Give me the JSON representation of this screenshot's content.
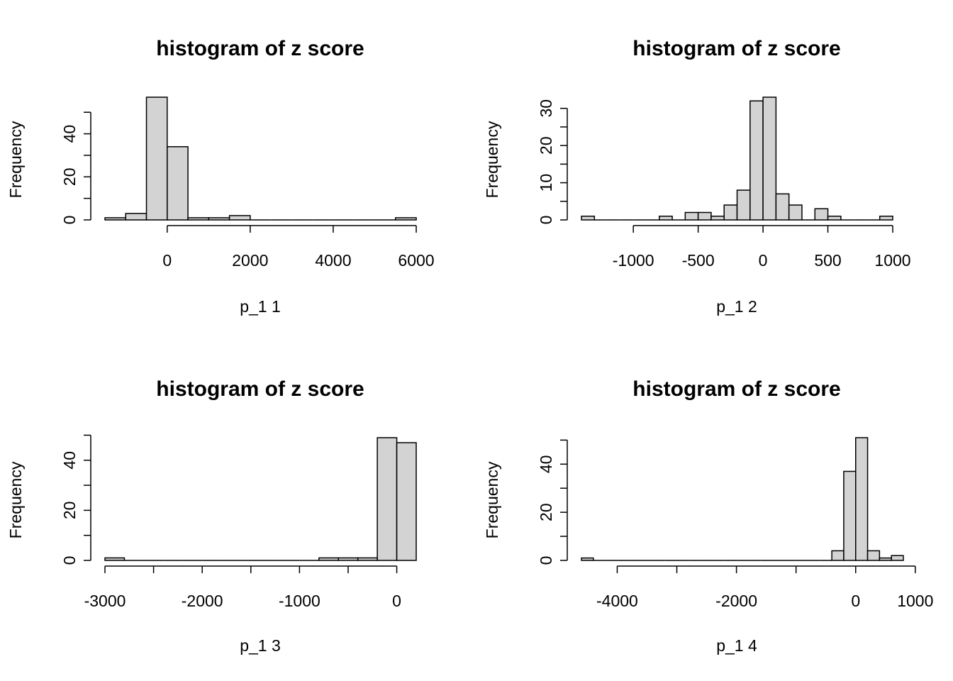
{
  "chart_data": [
    {
      "type": "bar",
      "title": "histogram of z score",
      "xlabel": "p_1 1",
      "ylabel": "Frequency",
      "bins": [
        -1500,
        -1000,
        -500,
        0,
        500,
        1000,
        1500,
        2000,
        2500,
        3000,
        3500,
        4000,
        4500,
        5000,
        5500,
        6000
      ],
      "counts": [
        1,
        3,
        57,
        34,
        1,
        1,
        2,
        0,
        0,
        0,
        0,
        0,
        0,
        0,
        1
      ],
      "xticks": [
        0,
        2000,
        4000,
        6000
      ],
      "xtick_labels": [
        "0",
        "2000",
        "4000",
        "6000"
      ],
      "yticks": [
        0,
        10,
        20,
        30,
        40,
        50
      ],
      "ytick_labels": [
        "0",
        "",
        "20",
        "",
        "40",
        ""
      ],
      "xlim": [
        -1500,
        6000
      ],
      "ylim": [
        0,
        57
      ]
    },
    {
      "type": "bar",
      "title": "histogram of z score",
      "xlabel": "p_1 2",
      "ylabel": "Frequency",
      "bins": [
        -1400,
        -1300,
        -1200,
        -1100,
        -1000,
        -900,
        -800,
        -700,
        -600,
        -500,
        -400,
        -300,
        -200,
        -100,
        0,
        100,
        200,
        300,
        400,
        500,
        600,
        700,
        800,
        900,
        1000
      ],
      "counts": [
        1,
        0,
        0,
        0,
        0,
        0,
        1,
        0,
        2,
        2,
        1,
        4,
        8,
        32,
        33,
        7,
        4,
        0,
        3,
        1,
        0,
        0,
        0,
        1
      ],
      "xticks": [
        -1000,
        -500,
        0,
        500,
        1000
      ],
      "xtick_labels": [
        "-1000",
        "-500",
        "0",
        "500",
        "1000"
      ],
      "yticks": [
        0,
        5,
        10,
        15,
        20,
        25,
        30
      ],
      "ytick_labels": [
        "0",
        "",
        "10",
        "",
        "20",
        "",
        "30"
      ],
      "xlim": [
        -1400,
        1000
      ],
      "ylim": [
        0,
        33
      ]
    },
    {
      "type": "bar",
      "title": "histogram of z score",
      "xlabel": "p_1 3",
      "ylabel": "Frequency",
      "bins": [
        -3000,
        -2800,
        -2600,
        -2400,
        -2200,
        -2000,
        -1800,
        -1600,
        -1400,
        -1200,
        -1000,
        -800,
        -600,
        -400,
        -200,
        0,
        200
      ],
      "counts": [
        1,
        0,
        0,
        0,
        0,
        0,
        0,
        0,
        0,
        0,
        0,
        1,
        1,
        1,
        49,
        47
      ],
      "xticks": [
        -3000,
        -2500,
        -2000,
        -1500,
        -1000,
        -500,
        0
      ],
      "xtick_labels": [
        "-3000",
        "",
        "-2000",
        "",
        "-1000",
        "",
        "0"
      ],
      "yticks": [
        0,
        10,
        20,
        30,
        40,
        50
      ],
      "ytick_labels": [
        "0",
        "",
        "20",
        "",
        "40",
        ""
      ],
      "xlim": [
        -3000,
        200
      ],
      "ylim": [
        0,
        49
      ]
    },
    {
      "type": "bar",
      "title": "histogram of z score",
      "xlabel": "p_1 4",
      "ylabel": "Frequency",
      "bins": [
        -4600,
        -4400,
        -4200,
        -4000,
        -3800,
        -3600,
        -3400,
        -3200,
        -3000,
        -2800,
        -2600,
        -2400,
        -2200,
        -2000,
        -1800,
        -1600,
        -1400,
        -1200,
        -1000,
        -800,
        -600,
        -400,
        -200,
        0,
        200,
        400,
        600,
        800
      ],
      "counts": [
        1,
        0,
        0,
        0,
        0,
        0,
        0,
        0,
        0,
        0,
        0,
        0,
        0,
        0,
        0,
        0,
        0,
        0,
        0,
        0,
        0,
        4,
        37,
        51,
        4,
        1,
        2
      ],
      "xticks": [
        -4000,
        -3000,
        -2000,
        -1000,
        0,
        1000
      ],
      "xtick_labels": [
        "-4000",
        "",
        "-2000",
        "",
        "0",
        "1000"
      ],
      "yticks": [
        0,
        10,
        20,
        30,
        40,
        50
      ],
      "ytick_labels": [
        "0",
        "",
        "20",
        "",
        "40",
        ""
      ],
      "xlim": [
        -4600,
        800
      ],
      "ylim": [
        0,
        51
      ]
    }
  ]
}
